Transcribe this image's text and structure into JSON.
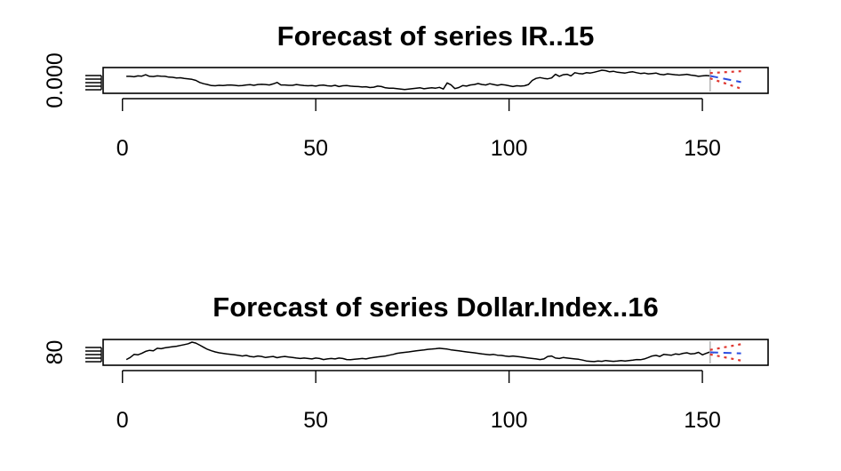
{
  "chart_data": [
    {
      "type": "line",
      "title": "Forecast of series IR..15",
      "xlabel": "",
      "ylabel": "",
      "xlim": [
        -5,
        167
      ],
      "x_ticks": [
        0,
        50,
        100,
        150
      ],
      "y_tick_labels": [
        "0.000"
      ],
      "colors": {
        "series": "#000000",
        "forecast": "#2b4de0",
        "interval": "#e0362f",
        "marker": "#b8b8b8"
      },
      "series": [
        {
          "values": [
            0.7,
            0.7,
            0.68,
            0.72,
            0.71,
            0.78,
            0.7,
            0.69,
            0.72,
            0.71,
            0.7,
            0.66,
            0.65,
            0.62,
            0.63,
            0.6,
            0.58,
            0.55,
            0.5,
            0.4,
            0.34,
            0.3,
            0.25,
            0.24,
            0.26,
            0.25,
            0.27,
            0.28,
            0.26,
            0.24,
            0.25,
            0.28,
            0.29,
            0.26,
            0.3,
            0.31,
            0.3,
            0.28,
            0.33,
            0.4,
            0.28,
            0.28,
            0.26,
            0.26,
            0.3,
            0.27,
            0.25,
            0.24,
            0.25,
            0.22,
            0.26,
            0.27,
            0.24,
            0.22,
            0.26,
            0.2,
            0.24,
            0.25,
            0.22,
            0.21,
            0.2,
            0.18,
            0.19,
            0.15,
            0.17,
            0.22,
            0.2,
            0.14,
            0.12,
            0.12,
            0.1,
            0.08,
            0.05,
            0.08,
            0.1,
            0.12,
            0.14,
            0.09,
            0.12,
            0.14,
            0.12,
            0.16,
            0.08,
            0.38,
            0.28,
            0.1,
            0.15,
            0.25,
            0.22,
            0.28,
            0.3,
            0.35,
            0.3,
            0.28,
            0.34,
            0.3,
            0.26,
            0.3,
            0.28,
            0.24,
            0.2,
            0.24,
            0.22,
            0.24,
            0.3,
            0.5,
            0.6,
            0.64,
            0.6,
            0.58,
            0.62,
            0.8,
            0.7,
            0.78,
            0.8,
            0.72,
            0.88,
            0.84,
            0.82,
            0.88,
            0.86,
            0.9,
            0.95,
            1.0,
            0.98,
            0.92,
            0.95,
            0.9,
            0.88,
            0.86,
            0.9,
            0.92,
            0.88,
            0.84,
            0.86,
            0.82,
            0.84,
            0.86,
            0.8,
            0.78,
            0.82,
            0.8,
            0.78,
            0.76,
            0.78,
            0.8,
            0.76,
            0.74,
            0.7,
            0.72,
            0.74,
            0.72,
            0.68
          ]
        }
      ],
      "forecast": {
        "x": [
          152,
          160
        ],
        "mean": [
          0.72,
          0.42
        ],
        "upper": [
          0.86,
          0.95
        ],
        "lower": [
          0.6,
          0.1
        ],
        "ylim": [
          0,
          1
        ]
      }
    },
    {
      "type": "line",
      "title": "Forecast of series Dollar.Index..16",
      "xlabel": "",
      "ylabel": "",
      "xlim": [
        -5,
        167
      ],
      "x_ticks": [
        0,
        50,
        100,
        150
      ],
      "y_tick_labels": [
        "80"
      ],
      "colors": {
        "series": "#000000",
        "forecast": "#2b4de0",
        "interval": "#e0362f",
        "marker": "#b8b8b8"
      },
      "series": [
        {
          "values": [
            0.15,
            0.25,
            0.4,
            0.38,
            0.45,
            0.55,
            0.6,
            0.58,
            0.7,
            0.68,
            0.72,
            0.75,
            0.78,
            0.8,
            0.84,
            0.88,
            0.92,
            1.0,
            0.95,
            0.85,
            0.75,
            0.65,
            0.58,
            0.52,
            0.48,
            0.45,
            0.42,
            0.4,
            0.38,
            0.35,
            0.32,
            0.35,
            0.3,
            0.28,
            0.32,
            0.3,
            0.25,
            0.28,
            0.3,
            0.24,
            0.28,
            0.3,
            0.27,
            0.25,
            0.22,
            0.2,
            0.22,
            0.2,
            0.18,
            0.22,
            0.2,
            0.15,
            0.18,
            0.2,
            0.18,
            0.22,
            0.2,
            0.15,
            0.14,
            0.16,
            0.18,
            0.2,
            0.18,
            0.22,
            0.25,
            0.28,
            0.3,
            0.32,
            0.36,
            0.4,
            0.45,
            0.48,
            0.5,
            0.52,
            0.55,
            0.58,
            0.6,
            0.62,
            0.65,
            0.66,
            0.68,
            0.7,
            0.68,
            0.66,
            0.62,
            0.6,
            0.58,
            0.55,
            0.52,
            0.5,
            0.48,
            0.45,
            0.42,
            0.4,
            0.38,
            0.4,
            0.36,
            0.35,
            0.32,
            0.3,
            0.32,
            0.3,
            0.28,
            0.25,
            0.22,
            0.2,
            0.18,
            0.15,
            0.18,
            0.3,
            0.32,
            0.22,
            0.2,
            0.25,
            0.22,
            0.2,
            0.18,
            0.16,
            0.12,
            0.08,
            0.06,
            0.05,
            0.08,
            0.06,
            0.1,
            0.08,
            0.06,
            0.08,
            0.1,
            0.08,
            0.1,
            0.12,
            0.15,
            0.14,
            0.18,
            0.25,
            0.32,
            0.35,
            0.3,
            0.4,
            0.38,
            0.36,
            0.42,
            0.4,
            0.45,
            0.48,
            0.42,
            0.44,
            0.5,
            0.38,
            0.45,
            0.52,
            0.48
          ],
          "ylim": [
            0,
            1
          ]
        }
      ],
      "forecast": {
        "x": [
          152,
          160
        ],
        "mean": [
          0.5,
          0.45
        ],
        "upper": [
          0.62,
          0.9
        ],
        "lower": [
          0.4,
          0.1
        ],
        "ylim": [
          0,
          1
        ]
      }
    }
  ]
}
